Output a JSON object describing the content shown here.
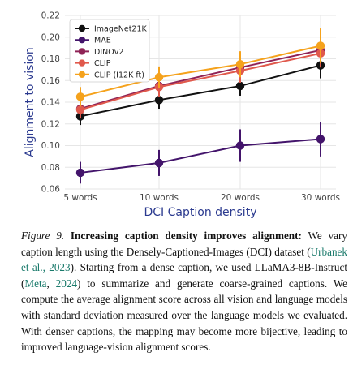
{
  "chart_data": {
    "type": "line",
    "xlabel": "DCI Caption density",
    "ylabel": "Alignment to vision",
    "categories": [
      "5 words",
      "10 words",
      "20 words",
      "30 words"
    ],
    "ylim": [
      0.06,
      0.22
    ],
    "yticks": [
      "0.06",
      "0.08",
      "0.10",
      "0.12",
      "0.14",
      "0.16",
      "0.18",
      "0.20",
      "0.22"
    ],
    "grid": true,
    "legend_position": "top-left",
    "series": [
      {
        "name": "ImageNet21K",
        "color": "#111111",
        "values": [
          0.127,
          0.142,
          0.155,
          0.174
        ],
        "errors": [
          0.008,
          0.008,
          0.009,
          0.012
        ]
      },
      {
        "name": "MAE",
        "color": "#43146b",
        "values": [
          0.075,
          0.084,
          0.1,
          0.106
        ],
        "errors": [
          0.01,
          0.012,
          0.015,
          0.016
        ]
      },
      {
        "name": "DINOv2",
        "color": "#8f2356",
        "values": [
          0.134,
          0.155,
          0.172,
          0.188
        ],
        "errors": [
          0.008,
          0.009,
          0.011,
          0.013
        ]
      },
      {
        "name": "CLIP",
        "color": "#e0594c",
        "values": [
          0.133,
          0.154,
          0.169,
          0.185
        ],
        "errors": [
          0.008,
          0.009,
          0.011,
          0.013
        ]
      },
      {
        "name": "CLIP (I12K ft)",
        "color": "#f5a21c",
        "values": [
          0.145,
          0.163,
          0.175,
          0.192
        ],
        "errors": [
          0.009,
          0.01,
          0.012,
          0.016
        ]
      }
    ]
  },
  "caption": {
    "label": "Figure 9.",
    "title": "Increasing caption density improves alignment:",
    "text1": "We vary caption length using the Densely-Captioned-Images (DCI) dataset (",
    "cite1": "Urbanek et al., 2023",
    "text2": "). Starting from a dense caption, we used LLaMA3-8B-Instruct (",
    "cite2": "Meta",
    "text3": ", ",
    "cite3": "2024",
    "text4": ") to summarize and generate coarse-grained captions. We compute the average alignment score across all vision and language models with standard deviation measured over the language models we evaluated. With denser captions, the mapping may become more bijective, leading to improved language-vision alignment scores."
  }
}
